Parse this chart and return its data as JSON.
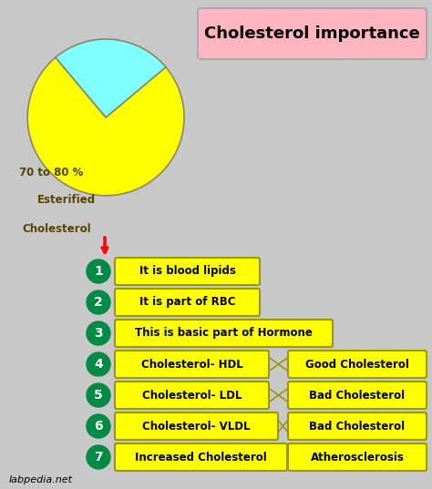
{
  "title": "Cholesterol importance",
  "title_bg": "#FFB6C1",
  "bg_color": "#C8C8C8",
  "pie_slices": [
    75,
    25
  ],
  "pie_colors": [
    "#FFFF00",
    "#7FFFFF"
  ],
  "items": [
    {
      "num": "1",
      "label": "It is blood lipids",
      "extra": null
    },
    {
      "num": "2",
      "label": "It is part of RBC",
      "extra": null
    },
    {
      "num": "3",
      "label": "This is basic part of Hormone",
      "extra": null
    },
    {
      "num": "4",
      "label": "Cholesterol- HDL",
      "extra": "Good Cholesterol"
    },
    {
      "num": "5",
      "label": "Cholesterol- LDL",
      "extra": "Bad Cholesterol"
    },
    {
      "num": "6",
      "label": "Cholesterol- VLDL",
      "extra": "Bad Cholesterol"
    },
    {
      "num": "7",
      "label": "Increased Cholesterol",
      "extra": "Atherosclerosis"
    }
  ],
  "circle_color": "#008B45",
  "circle_text_color": "white",
  "box_color": "#FFFF00",
  "box_edge_color": "#999900",
  "watermark": "labpedia.net"
}
